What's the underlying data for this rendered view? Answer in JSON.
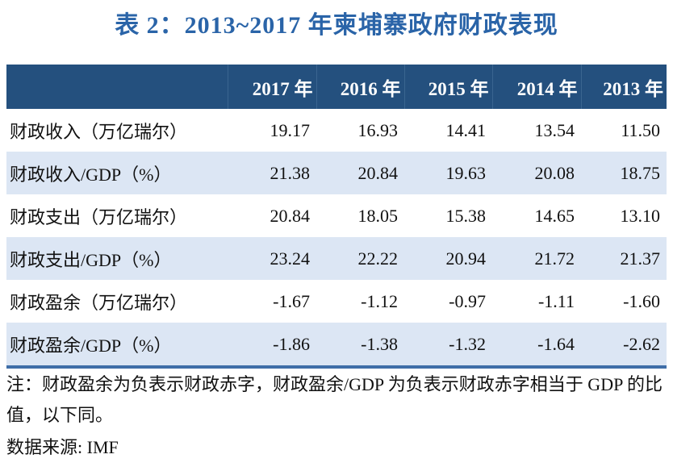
{
  "title": "表 2：2013~2017 年柬埔寨政府财政表现",
  "table": {
    "headers": [
      "",
      "2017 年",
      "2016 年",
      "2015 年",
      "2014 年",
      "2013 年"
    ],
    "rows": [
      [
        "财政收入（万亿瑞尔）",
        "19.17",
        "16.93",
        "14.41",
        "13.54",
        "11.50"
      ],
      [
        "财政收入/GDP（%）",
        "21.38",
        "20.84",
        "19.63",
        "20.08",
        "18.75"
      ],
      [
        "财政支出（万亿瑞尔）",
        "20.84",
        "18.05",
        "15.38",
        "14.65",
        "13.10"
      ],
      [
        "财政支出/GDP（%）",
        "23.24",
        "22.22",
        "20.94",
        "21.72",
        "21.37"
      ],
      [
        "财政盈余（万亿瑞尔）",
        "-1.67",
        "-1.12",
        "-0.97",
        "-1.11",
        "-1.60"
      ],
      [
        "财政盈余/GDP（%）",
        "-1.86",
        "-1.38",
        "-1.32",
        "-1.64",
        "-2.62"
      ]
    ]
  },
  "note": "注：财政盈余为负表示财政赤字，财政盈余/GDP 为负表示财政赤字相当于 GDP 的比值，以下同。",
  "source": "数据来源: IMF",
  "colors": {
    "title": "#2a64a8",
    "header_bg": "#24507e",
    "alt_row": "#dce6f4"
  }
}
